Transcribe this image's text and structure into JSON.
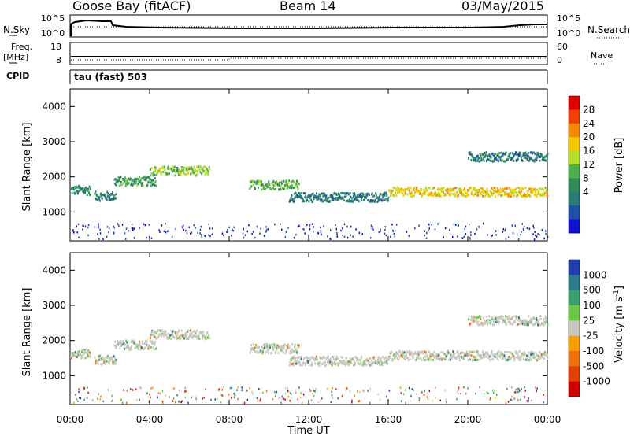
{
  "header": {
    "station": "Goose Bay (fitACF)",
    "beam": "Beam 14",
    "date": "03/May/2015"
  },
  "strips": {
    "nsky_label": "N.Sky",
    "nsearch_label": "N.Search",
    "noise_ticks": [
      "10^5",
      "10^0"
    ],
    "freq_label": "Freq.",
    "freq_unit": "[MHz]",
    "freq_ticks": [
      "18",
      "8"
    ],
    "nave_label": "Nave",
    "nave_ticks": [
      "60",
      "0"
    ],
    "cpid_label": "CPID",
    "cpid_text": "tau (fast) 503"
  },
  "axes": {
    "ylabel": "Slant Range [km]",
    "y_ticks": [
      "4000",
      "3000",
      "2000",
      "1000"
    ],
    "x_ticks": [
      "00:00",
      "04:00",
      "08:00",
      "12:00",
      "16:00",
      "20:00",
      "00:00"
    ],
    "xlabel": "Time UT"
  },
  "power_scale": {
    "label": "Power [dB]",
    "ticks": [
      "28",
      "24",
      "20",
      "16",
      "12",
      "8",
      "4"
    ],
    "colors": [
      "#e00000",
      "#f04000",
      "#f58a00",
      "#f5c800",
      "#b5e02a",
      "#4caf50",
      "#2e8b57",
      "#2a7a7a",
      "#1f4fa8",
      "#1010d0"
    ]
  },
  "velocity_scale": {
    "label": "Velocity [m s^-1]",
    "ticks": [
      "1000",
      "500",
      "100",
      "25",
      "-25",
      "-100",
      "-500",
      "-1000"
    ],
    "colors": [
      "#1f3fb0",
      "#2a7a8a",
      "#3aa070",
      "#6cc845",
      "#c8c8c0",
      "#f5a000",
      "#f07010",
      "#e04000",
      "#d00000"
    ]
  },
  "chart_data": {
    "type": "heatmap",
    "x_range_hours": [
      0,
      24
    ],
    "y_range_km": [
      180,
      4500
    ],
    "xlabel": "Time UT",
    "ylabel": "Slant Range [km]",
    "panels": [
      "Power [dB]",
      "Velocity [m s^-1]"
    ],
    "echo_bands": [
      {
        "t_start": 0.0,
        "t_end": 1.0,
        "range_km": 1650,
        "power_db": 10,
        "velocity": 25
      },
      {
        "t_start": 1.2,
        "t_end": 2.3,
        "range_km": 1480,
        "power_db": 8,
        "velocity": 25
      },
      {
        "t_start": 2.2,
        "t_end": 4.3,
        "range_km": 1900,
        "power_db": 12,
        "velocity": 0
      },
      {
        "t_start": 4.0,
        "t_end": 7.0,
        "range_km": 2200,
        "power_db": 16,
        "velocity": 0
      },
      {
        "t_start": 9.0,
        "t_end": 11.5,
        "range_km": 1800,
        "power_db": 14,
        "velocity": 0
      },
      {
        "t_start": 11.0,
        "t_end": 16.0,
        "range_km": 1450,
        "power_db": 8,
        "velocity": 0
      },
      {
        "t_start": 16.0,
        "t_end": 24.0,
        "range_km": 1600,
        "power_db": 20,
        "velocity": 0
      },
      {
        "t_start": 20.0,
        "t_end": 24.0,
        "range_km": 2600,
        "power_db": 8,
        "velocity": 0
      }
    ]
  }
}
